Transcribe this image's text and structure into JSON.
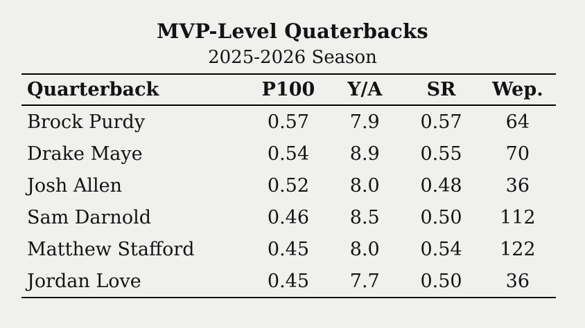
{
  "chart_data": {
    "type": "table",
    "title": "MVP-Level Quaterbacks",
    "subtitle": "2025-2026 Season",
    "columns": [
      "Quarterback",
      "P100",
      "Y/A",
      "SR",
      "Wep."
    ],
    "rows": [
      [
        "Brock Purdy",
        "0.57",
        "7.9",
        "0.57",
        "64"
      ],
      [
        "Drake Maye",
        "0.54",
        "8.9",
        "0.55",
        "70"
      ],
      [
        "Josh Allen",
        "0.52",
        "8.0",
        "0.48",
        "36"
      ],
      [
        "Sam Darnold",
        "0.46",
        "8.5",
        "0.50",
        "112"
      ],
      [
        "Matthew Stafford",
        "0.45",
        "8.0",
        "0.54",
        "122"
      ],
      [
        "Jordan Love",
        "0.45",
        "7.7",
        "0.50",
        "36"
      ]
    ],
    "layout_hints": {
      "first_column_align": "left",
      "numeric_columns_align": "center",
      "grid": "horizontal-rules-only"
    },
    "colors": {
      "background": "#f0f0ee",
      "text": "#131313",
      "rule": "#000000"
    }
  }
}
